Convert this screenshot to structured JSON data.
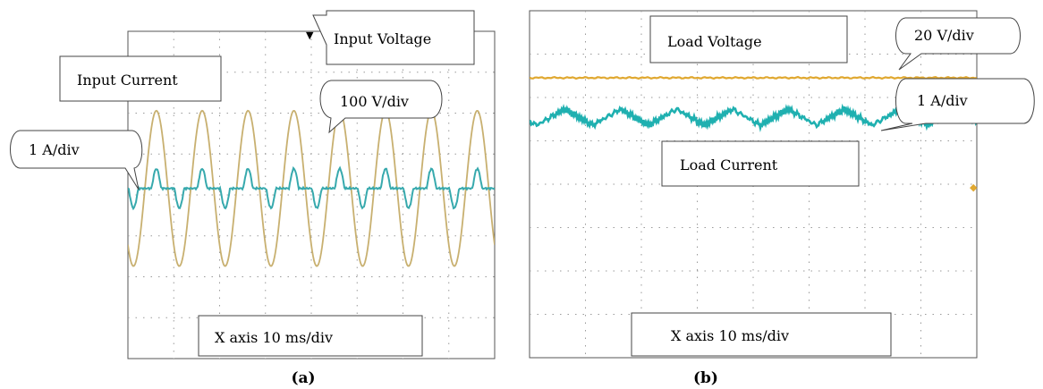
{
  "chart_data": [
    {
      "type": "line",
      "caption": "(a)",
      "series": [
        {
          "name": "Input Voltage",
          "color": "#c8b070",
          "scale": "100 V/div",
          "shape": "sine",
          "period_div": 1.0,
          "amplitude_div": 1.9
        },
        {
          "name": "Input Current",
          "color": "#37a9ad",
          "scale": "1 A/div",
          "shape": "pulsed",
          "period_div": 1.0
        }
      ],
      "annotations": {
        "voltage_label": "Input Voltage",
        "current_label": "Input Current",
        "voltage_scale": "100 V/div",
        "current_scale": "1 A/div",
        "time_scale": "X axis 10 ms/div"
      },
      "grid": true
    },
    {
      "type": "line",
      "caption": "(b)",
      "series": [
        {
          "name": "Load Voltage",
          "color": "#e0a830",
          "scale": "20 V/div",
          "shape": "dc"
        },
        {
          "name": "Load Current",
          "color": "#1fb0b0",
          "scale": "1 A/div",
          "shape": "ripple",
          "period_div": 1.0
        }
      ],
      "annotations": {
        "voltage_label": "Load Voltage",
        "current_label": "Load Current",
        "voltage_scale": "20 V/div",
        "current_scale": "1 A/div",
        "time_scale": "X axis 10 ms/div"
      },
      "grid": true
    }
  ]
}
